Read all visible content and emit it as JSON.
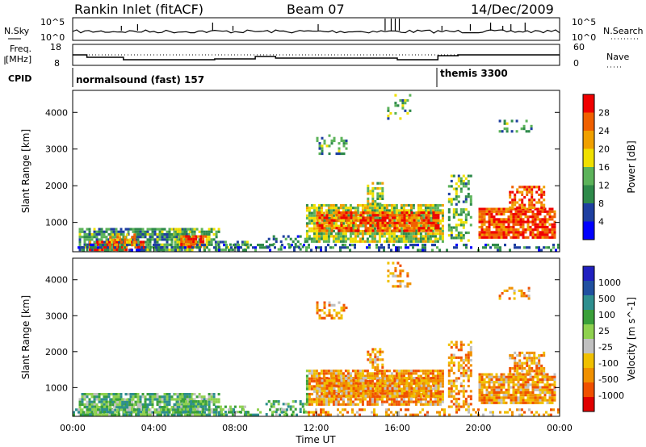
{
  "header": {
    "station": "Rankin Inlet (fitACF)",
    "beam": "Beam 07",
    "date": "14/Dec/2009"
  },
  "noise_panel": {
    "left_label": "N.Sky",
    "left_ticks": [
      "10^5",
      "10^0"
    ],
    "right_label": "N.Search",
    "right_ticks": [
      "10^5",
      "10^0"
    ]
  },
  "freq_panel": {
    "left_label_1": "Freq.",
    "left_label_2": "[MHz]",
    "left_ticks": [
      "18",
      "8"
    ],
    "right_label": "Nave",
    "right_ticks": [
      "60",
      "0"
    ]
  },
  "cpid": {
    "label": "CPID",
    "segments": [
      "normalsound (fast) 157",
      "themis 3300"
    ]
  },
  "colors": {
    "power_scale": [
      "#0000ff",
      "#1e3fa0",
      "#2e8a4a",
      "#5cb35a",
      "#f0e000",
      "#f0a000",
      "#f06000",
      "#f00000"
    ],
    "velocity_scale": [
      "#e00000",
      "#f05000",
      "#f09000",
      "#f0c000",
      "#c0c0c0",
      "#8fd14f",
      "#3aa03a",
      "#2e8f8f",
      "#2050a0",
      "#2020c0"
    ]
  },
  "chart_data": [
    {
      "type": "heatmap",
      "name": "power",
      "ylabel": "Slant Range [km]",
      "xlabel": "",
      "yticks": [
        "1000",
        "2000",
        "3000",
        "4000"
      ],
      "ylim": [
        200,
        4600
      ],
      "colorbar_label": "Power [dB]",
      "colorbar_ticks": [
        "4",
        "8",
        "12",
        "16",
        "20",
        "24",
        "28"
      ]
    },
    {
      "type": "heatmap",
      "name": "velocity",
      "ylabel": "Slant Range [km]",
      "xlabel": "Time UT",
      "xticks": [
        "00:00",
        "04:00",
        "08:00",
        "12:00",
        "16:00",
        "20:00",
        "00:00"
      ],
      "yticks": [
        "1000",
        "2000",
        "3000",
        "4000"
      ],
      "ylim": [
        200,
        4600
      ],
      "colorbar_label": "Velocity [m s^-1]",
      "colorbar_ticks": [
        "1000",
        "500",
        "100",
        "25",
        "-25",
        "-100",
        "-500",
        "-1000"
      ]
    }
  ]
}
